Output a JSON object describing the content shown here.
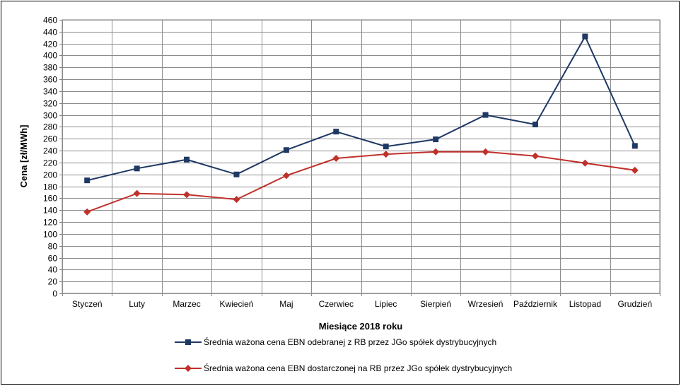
{
  "chart_data": {
    "type": "line",
    "title": "",
    "xlabel": "Miesiące 2018  roku",
    "ylabel": "Cena [zł/MWh]",
    "ylim": [
      0,
      460
    ],
    "ytick_step": 20,
    "grid": true,
    "legend_position": "bottom",
    "categories": [
      "Styczeń",
      "Luty",
      "Marzec",
      "Kwiecień",
      "Maj",
      "Czerwiec",
      "Lipiec",
      "Sierpień",
      "Wrzesień",
      "Październik",
      "Listopad",
      "Grudzień"
    ],
    "series": [
      {
        "name": "Średnia ważona cena EBN odebranej z RB przez JGo spółek dystrybucyjnych",
        "color": "#1f3864",
        "marker": "square",
        "values": [
          190,
          210,
          225,
          200,
          241,
          272,
          247,
          259,
          300,
          284,
          432,
          248
        ]
      },
      {
        "name": "Średnia ważona cena EBN dostarczonej na RB przez JGo spółek dystrybucyjnych",
        "color": "#c0312b",
        "marker": "diamond",
        "values": [
          137,
          168,
          166,
          158,
          198,
          227,
          234,
          238,
          238,
          231,
          219,
          207
        ]
      }
    ]
  }
}
